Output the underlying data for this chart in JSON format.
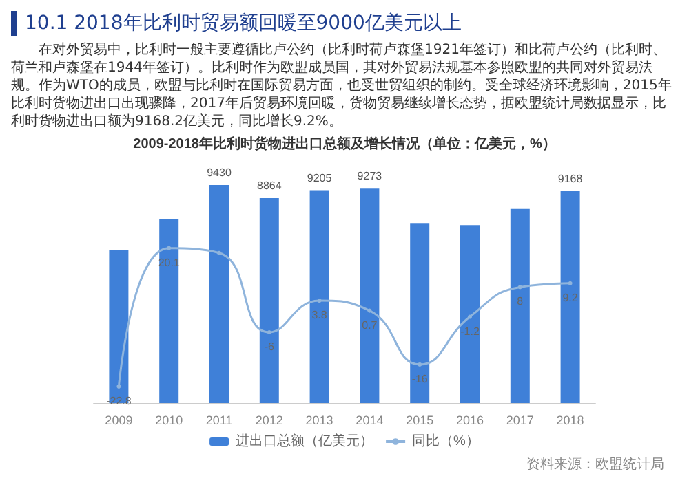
{
  "chart_data": {
    "type": "bar",
    "title": "10.1 2018年比利时贸易额回暖至9000亿美元以上",
    "subtitle": "在对外贸易中，比利时一般主要遵循比卢公约（比利时荷卢森堡1921年签订）和比荷卢公约（比利时、荷兰和卢森堡在1944年签订）。比利时作为欧盟成员国，其对外贸易法规基本参照欧盟的共同对外贸易法规。作为WTO的成员，欧盟与比利时在国际贸易方面，也受世贸组织的制约。受全球经济环境影响，2015年比利时货物进出口出现骤降，2017年后贸易环境回暖，货物贸易继续增长态势，据欧盟统计局数据显示，比利时货物进出口额为9168.2亿美元，同比增长9.2%。",
    "annotations": [
      "2009-2018年比利时货物进出口总额及增长情况（单位：亿美元，%）",
      "资料来源：欧盟统计局"
    ],
    "categories": [
      "2009",
      "2010",
      "2011",
      "2012",
      "2013",
      "2014",
      "2015",
      "2016",
      "2017",
      "2018"
    ],
    "series": [
      {
        "name": "进出口总额（亿美元）",
        "color": "#3f80d8",
        "values": [
          6620,
          7954,
          9430,
          8864,
          9205,
          9273,
          7790,
          7697,
          8396,
          9168
        ],
        "value_labels": [
          null,
          null,
          "9430",
          "8864",
          "9205",
          "9273",
          null,
          null,
          null,
          "9168"
        ]
      },
      {
        "name": "同比（%）",
        "type": "line",
        "axis": "y2",
        "color": "#8fb4dc",
        "values": [
          -22.8,
          20.1,
          18.6,
          -6,
          3.8,
          0.7,
          -16,
          -1.2,
          8,
          9.2
        ],
        "value_labels": [
          "-22.8",
          "20.1",
          null,
          "-6",
          "3.8",
          "0.7",
          "-16",
          "-1.2",
          "8",
          "9.2"
        ]
      }
    ],
    "legend": "bottom",
    "marker": "circle"
  }
}
